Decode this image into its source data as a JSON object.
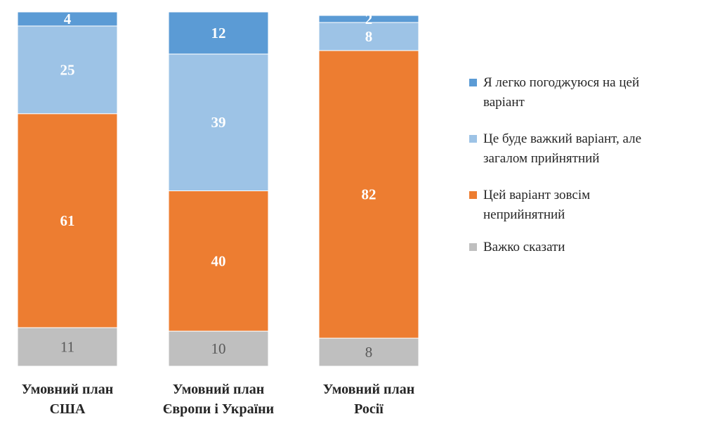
{
  "chart_data": {
    "type": "bar",
    "stacked": true,
    "categories": [
      [
        "Умовний план",
        "США"
      ],
      [
        "Умовний план",
        "Європи і України"
      ],
      [
        "Умовний план",
        "Росії"
      ]
    ],
    "series": [
      {
        "name": "Важко сказати",
        "color": "#bfbfbf",
        "label_color": "#595959",
        "values": [
          11,
          10,
          8
        ]
      },
      {
        "name": "Цей варіант зовсім неприйнятний",
        "color": "#ed7d31",
        "label_color": "#ffffff",
        "values": [
          61,
          40,
          82
        ]
      },
      {
        "name": "Це буде важкий варіант, але загалом прийнятний",
        "color": "#9dc3e6",
        "label_color": "#ffffff",
        "values": [
          25,
          39,
          8
        ]
      },
      {
        "name": "Я легко погоджуюся на цей варіант",
        "color": "#5b9bd5",
        "label_color": "#ffffff",
        "values": [
          4,
          12,
          2
        ]
      }
    ],
    "legend": {
      "position": "right",
      "order": [
        3,
        2,
        1,
        0
      ],
      "lines": [
        [
          "Я легко погоджуюся на цей",
          "варіант"
        ],
        [
          "Це буде важкий варіант, але",
          "загалом прийнятний"
        ],
        [
          "Цей варіант зовсім",
          "неприйнятний"
        ],
        [
          "Важко сказати"
        ]
      ]
    },
    "ylim": [
      0,
      101
    ],
    "grid": false,
    "title": "",
    "xlabel": "",
    "ylabel": ""
  }
}
